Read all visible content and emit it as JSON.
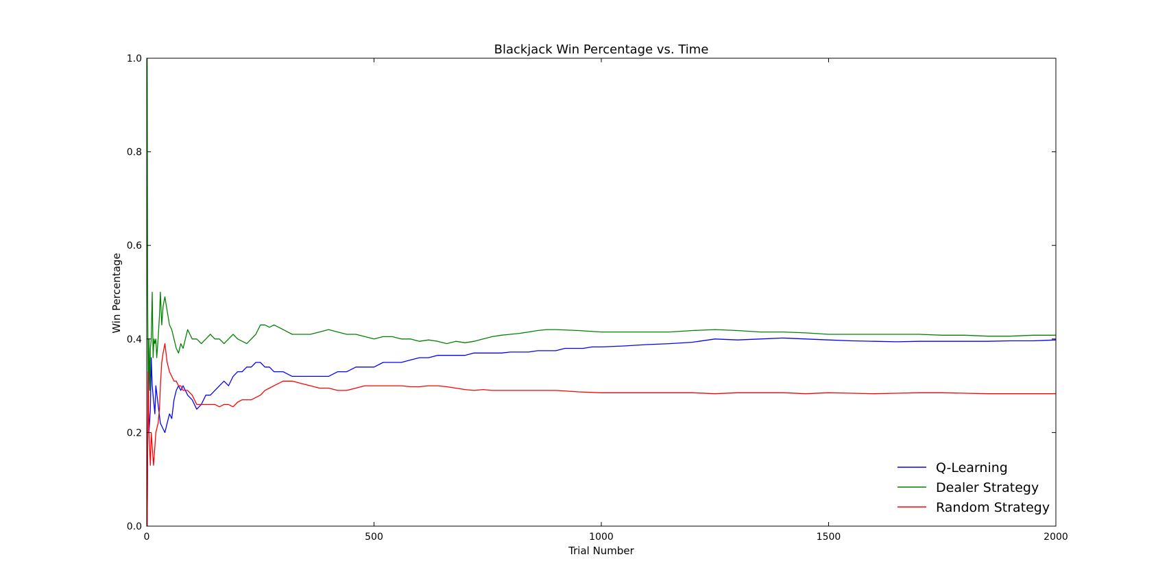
{
  "chart_data": {
    "type": "line",
    "title": "Blackjack Win Percentage vs. Time",
    "xlabel": "Trial Number",
    "ylabel": "Win Percentage",
    "xlim": [
      0,
      2000
    ],
    "ylim": [
      0.0,
      1.0
    ],
    "xticks": [
      0,
      500,
      1000,
      1500,
      2000
    ],
    "yticks": [
      0.0,
      0.2,
      0.4,
      0.6,
      0.8,
      1.0
    ],
    "xtick_labels": [
      "0",
      "500",
      "1000",
      "1500",
      "2000"
    ],
    "ytick_labels": [
      "0.0",
      "0.2",
      "0.4",
      "0.6",
      "0.8",
      "1.0"
    ],
    "grid": false,
    "legend_position": "lower-right",
    "series": [
      {
        "name": "Q-Learning",
        "color": "#0000ff",
        "x": [
          1,
          3,
          5,
          8,
          10,
          12,
          15,
          18,
          20,
          25,
          30,
          35,
          40,
          45,
          50,
          55,
          60,
          65,
          70,
          75,
          80,
          90,
          100,
          110,
          120,
          130,
          140,
          150,
          160,
          170,
          180,
          190,
          200,
          210,
          220,
          230,
          240,
          250,
          260,
          270,
          280,
          290,
          300,
          320,
          340,
          360,
          380,
          400,
          420,
          440,
          460,
          480,
          500,
          520,
          540,
          560,
          580,
          600,
          620,
          640,
          660,
          680,
          700,
          720,
          740,
          760,
          780,
          800,
          820,
          840,
          860,
          880,
          900,
          920,
          940,
          960,
          980,
          1000,
          1050,
          1100,
          1150,
          1200,
          1250,
          1300,
          1350,
          1400,
          1450,
          1500,
          1550,
          1600,
          1650,
          1700,
          1750,
          1800,
          1850,
          1900,
          1950,
          2000
        ],
        "y": [
          0.0,
          0.33,
          0.2,
          0.25,
          0.36,
          0.3,
          0.27,
          0.24,
          0.3,
          0.26,
          0.22,
          0.21,
          0.2,
          0.22,
          0.24,
          0.23,
          0.27,
          0.29,
          0.3,
          0.29,
          0.3,
          0.28,
          0.27,
          0.25,
          0.26,
          0.28,
          0.28,
          0.29,
          0.3,
          0.31,
          0.3,
          0.32,
          0.33,
          0.33,
          0.34,
          0.34,
          0.35,
          0.35,
          0.34,
          0.34,
          0.33,
          0.33,
          0.33,
          0.32,
          0.32,
          0.32,
          0.32,
          0.32,
          0.33,
          0.33,
          0.34,
          0.34,
          0.34,
          0.35,
          0.35,
          0.35,
          0.355,
          0.36,
          0.36,
          0.365,
          0.365,
          0.365,
          0.365,
          0.37,
          0.37,
          0.37,
          0.37,
          0.372,
          0.372,
          0.372,
          0.375,
          0.375,
          0.375,
          0.38,
          0.38,
          0.38,
          0.383,
          0.383,
          0.385,
          0.388,
          0.39,
          0.393,
          0.4,
          0.398,
          0.4,
          0.402,
          0.4,
          0.398,
          0.396,
          0.395,
          0.394,
          0.395,
          0.395,
          0.395,
          0.395,
          0.396,
          0.396,
          0.398
        ]
      },
      {
        "name": "Dealer Strategy",
        "color": "#008000",
        "x": [
          1,
          2,
          3,
          4,
          5,
          6,
          7,
          8,
          10,
          12,
          14,
          16,
          18,
          20,
          22,
          25,
          28,
          30,
          33,
          36,
          40,
          45,
          50,
          55,
          60,
          65,
          70,
          75,
          80,
          90,
          100,
          110,
          120,
          130,
          140,
          150,
          160,
          170,
          180,
          190,
          200,
          220,
          240,
          250,
          260,
          270,
          280,
          290,
          300,
          320,
          340,
          360,
          380,
          400,
          420,
          440,
          460,
          480,
          500,
          520,
          540,
          560,
          580,
          600,
          620,
          640,
          660,
          680,
          700,
          720,
          740,
          760,
          780,
          800,
          820,
          840,
          860,
          880,
          900,
          950,
          1000,
          1050,
          1100,
          1150,
          1200,
          1250,
          1300,
          1350,
          1400,
          1450,
          1500,
          1550,
          1600,
          1650,
          1700,
          1750,
          1800,
          1850,
          1900,
          1950,
          2000
        ],
        "y": [
          1.0,
          0.5,
          0.33,
          0.25,
          0.4,
          0.33,
          0.29,
          0.38,
          0.4,
          0.5,
          0.36,
          0.4,
          0.39,
          0.4,
          0.36,
          0.4,
          0.45,
          0.5,
          0.43,
          0.47,
          0.49,
          0.46,
          0.43,
          0.42,
          0.4,
          0.38,
          0.37,
          0.39,
          0.38,
          0.42,
          0.4,
          0.4,
          0.39,
          0.4,
          0.41,
          0.4,
          0.4,
          0.39,
          0.4,
          0.41,
          0.4,
          0.39,
          0.41,
          0.43,
          0.43,
          0.425,
          0.43,
          0.425,
          0.42,
          0.41,
          0.41,
          0.41,
          0.415,
          0.42,
          0.415,
          0.41,
          0.41,
          0.405,
          0.4,
          0.405,
          0.405,
          0.4,
          0.4,
          0.395,
          0.398,
          0.395,
          0.39,
          0.395,
          0.392,
          0.395,
          0.4,
          0.405,
          0.408,
          0.41,
          0.412,
          0.415,
          0.418,
          0.42,
          0.42,
          0.418,
          0.415,
          0.415,
          0.415,
          0.415,
          0.418,
          0.42,
          0.418,
          0.415,
          0.415,
          0.413,
          0.41,
          0.41,
          0.41,
          0.41,
          0.41,
          0.408,
          0.408,
          0.406,
          0.406,
          0.408,
          0.408
        ]
      },
      {
        "name": "Random Strategy",
        "color": "#ff0000",
        "x": [
          1,
          3,
          5,
          8,
          10,
          12,
          15,
          18,
          20,
          25,
          28,
          30,
          33,
          36,
          40,
          45,
          50,
          55,
          60,
          65,
          70,
          75,
          80,
          90,
          100,
          110,
          120,
          130,
          140,
          150,
          160,
          170,
          180,
          190,
          200,
          210,
          220,
          230,
          240,
          250,
          260,
          270,
          280,
          290,
          300,
          320,
          340,
          360,
          380,
          400,
          420,
          440,
          460,
          480,
          500,
          520,
          540,
          560,
          580,
          600,
          620,
          640,
          660,
          680,
          700,
          720,
          740,
          760,
          780,
          800,
          850,
          900,
          950,
          1000,
          1050,
          1100,
          1150,
          1200,
          1250,
          1300,
          1350,
          1400,
          1450,
          1500,
          1550,
          1600,
          1650,
          1700,
          1750,
          1800,
          1850,
          1900,
          1950,
          2000
        ],
        "y": [
          0.0,
          0.33,
          0.2,
          0.13,
          0.2,
          0.17,
          0.13,
          0.17,
          0.2,
          0.22,
          0.25,
          0.3,
          0.35,
          0.37,
          0.39,
          0.35,
          0.33,
          0.32,
          0.31,
          0.31,
          0.3,
          0.3,
          0.29,
          0.29,
          0.28,
          0.26,
          0.26,
          0.26,
          0.26,
          0.26,
          0.255,
          0.26,
          0.26,
          0.255,
          0.265,
          0.27,
          0.27,
          0.27,
          0.275,
          0.28,
          0.29,
          0.295,
          0.3,
          0.305,
          0.31,
          0.31,
          0.305,
          0.3,
          0.295,
          0.295,
          0.29,
          0.29,
          0.295,
          0.3,
          0.3,
          0.3,
          0.3,
          0.3,
          0.298,
          0.298,
          0.3,
          0.3,
          0.298,
          0.295,
          0.292,
          0.29,
          0.292,
          0.29,
          0.29,
          0.29,
          0.29,
          0.29,
          0.287,
          0.285,
          0.285,
          0.285,
          0.285,
          0.285,
          0.283,
          0.285,
          0.285,
          0.285,
          0.283,
          0.285,
          0.284,
          0.283,
          0.284,
          0.285,
          0.285,
          0.284,
          0.283,
          0.283,
          0.283,
          0.283
        ]
      }
    ]
  }
}
